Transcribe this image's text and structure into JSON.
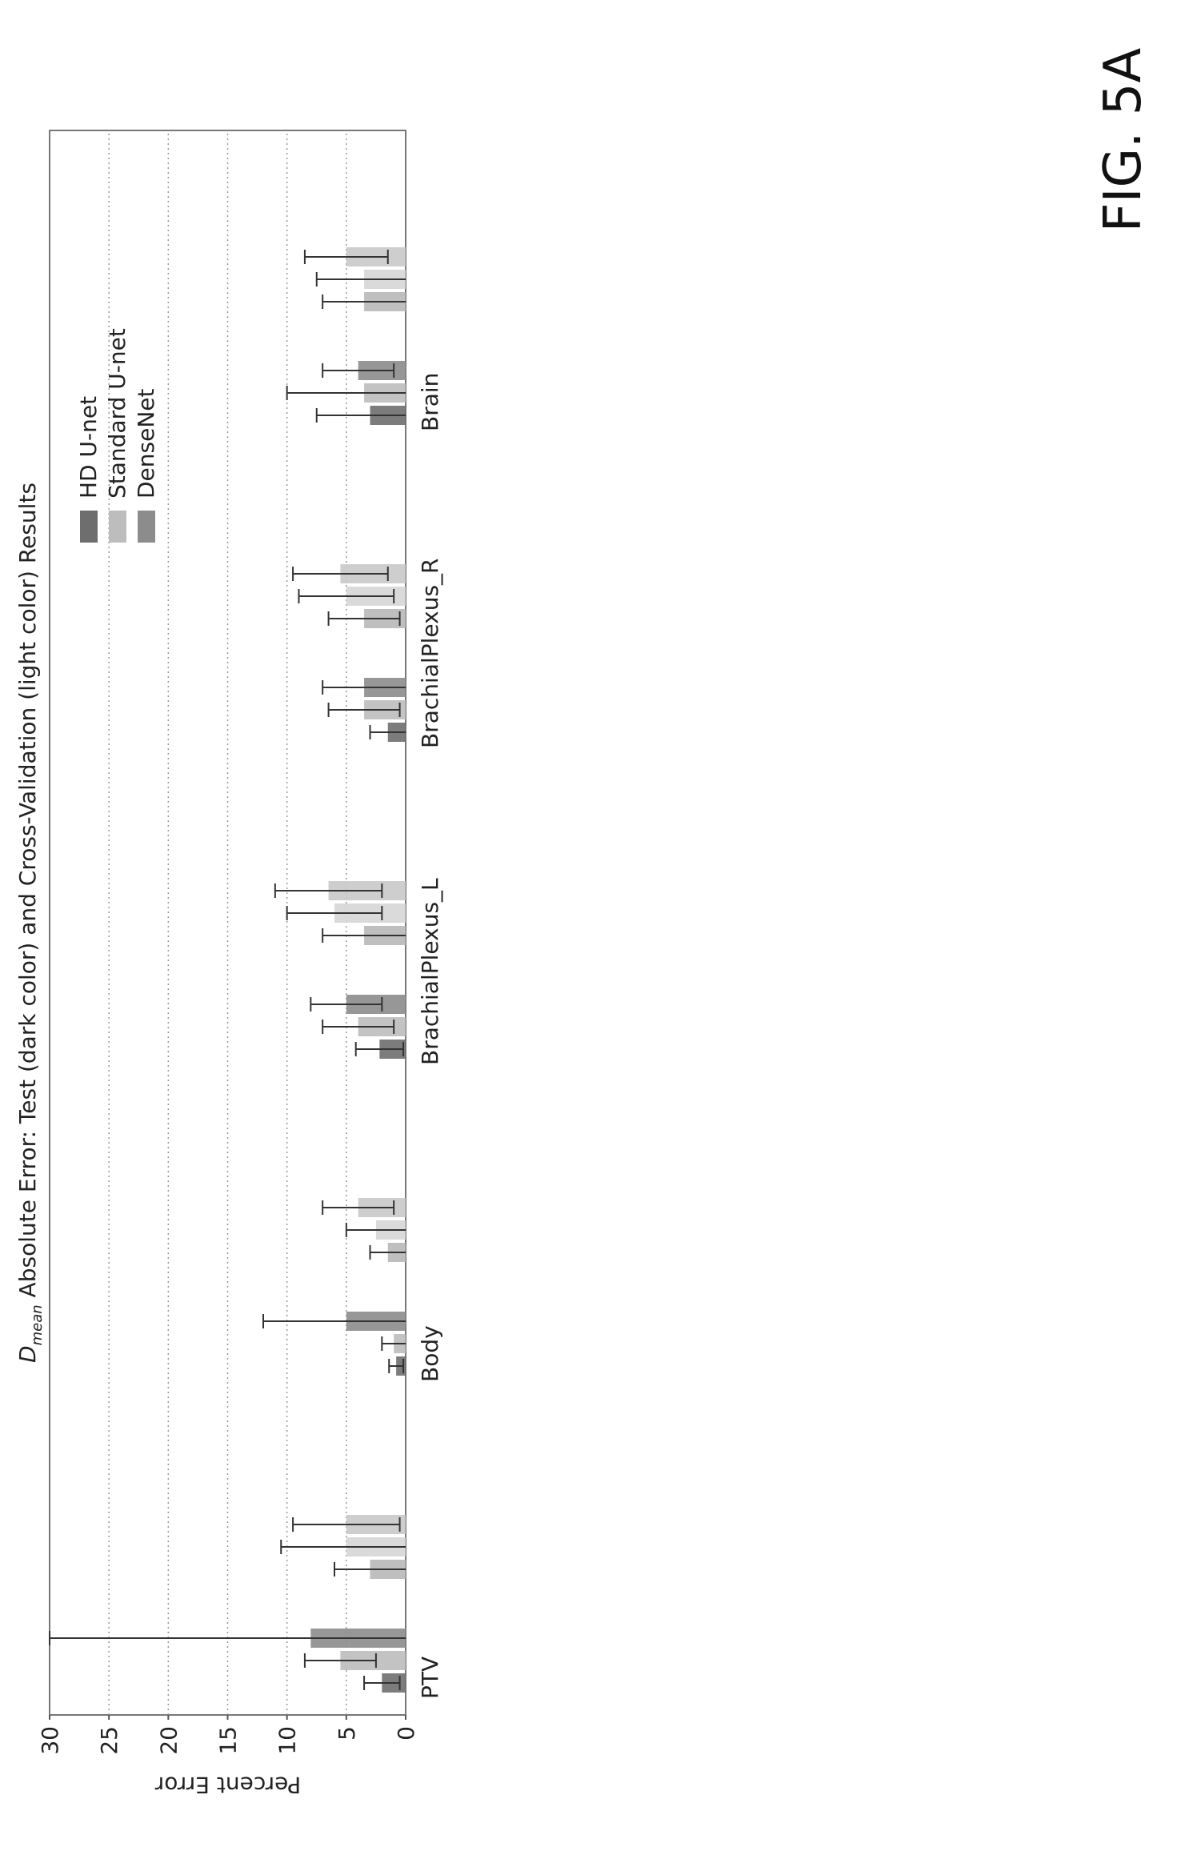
{
  "figure_label": "FIG. 5A",
  "chart_data": {
    "type": "bar",
    "title_symbol": "D",
    "title_subscript": "mean",
    "title_rest": " Absolute Error: Test (dark color) and Cross-Validation (light color) Results",
    "ylabel": "Percent Error",
    "xlabel": "",
    "ylim": [
      0,
      30
    ],
    "yticks": [
      0,
      5,
      10,
      15,
      20,
      25,
      30
    ],
    "grid": "horizontal dotted",
    "legend_position": "top-right",
    "categories": [
      "PTV",
      "Body",
      "BrachialPlexus_L",
      "BrachialPlexus_R",
      "Brain"
    ],
    "series": [
      {
        "name": "HD U-net",
        "color": "#6e6e6e",
        "test": [
          2.0,
          0.8,
          2.2,
          1.5,
          3.0
        ],
        "test_err": [
          1.5,
          0.6,
          2.0,
          1.5,
          4.5
        ],
        "cv": [
          3.0,
          1.5,
          3.5,
          3.5,
          3.5
        ],
        "cv_err": [
          3.0,
          1.5,
          3.5,
          3.0,
          3.5
        ]
      },
      {
        "name": "Standard U-net",
        "color": "#bdbdbd",
        "test": [
          5.5,
          1.0,
          4.0,
          3.5,
          3.5
        ],
        "test_err": [
          3.0,
          1.0,
          3.0,
          3.0,
          6.5
        ],
        "cv": [
          5.0,
          2.5,
          6.0,
          5.0,
          3.5
        ],
        "cv_err": [
          5.5,
          2.5,
          4.0,
          4.0,
          4.0
        ]
      },
      {
        "name": "DenseNet",
        "color": "#8c8c8c",
        "test": [
          8.0,
          5.0,
          5.0,
          3.5,
          4.0
        ],
        "test_err": [
          22.0,
          7.0,
          3.0,
          3.5,
          3.0
        ],
        "cv": [
          5.0,
          4.0,
          6.5,
          5.5,
          5.0
        ],
        "cv_err": [
          4.5,
          3.0,
          4.5,
          4.0,
          3.5
        ]
      }
    ]
  }
}
